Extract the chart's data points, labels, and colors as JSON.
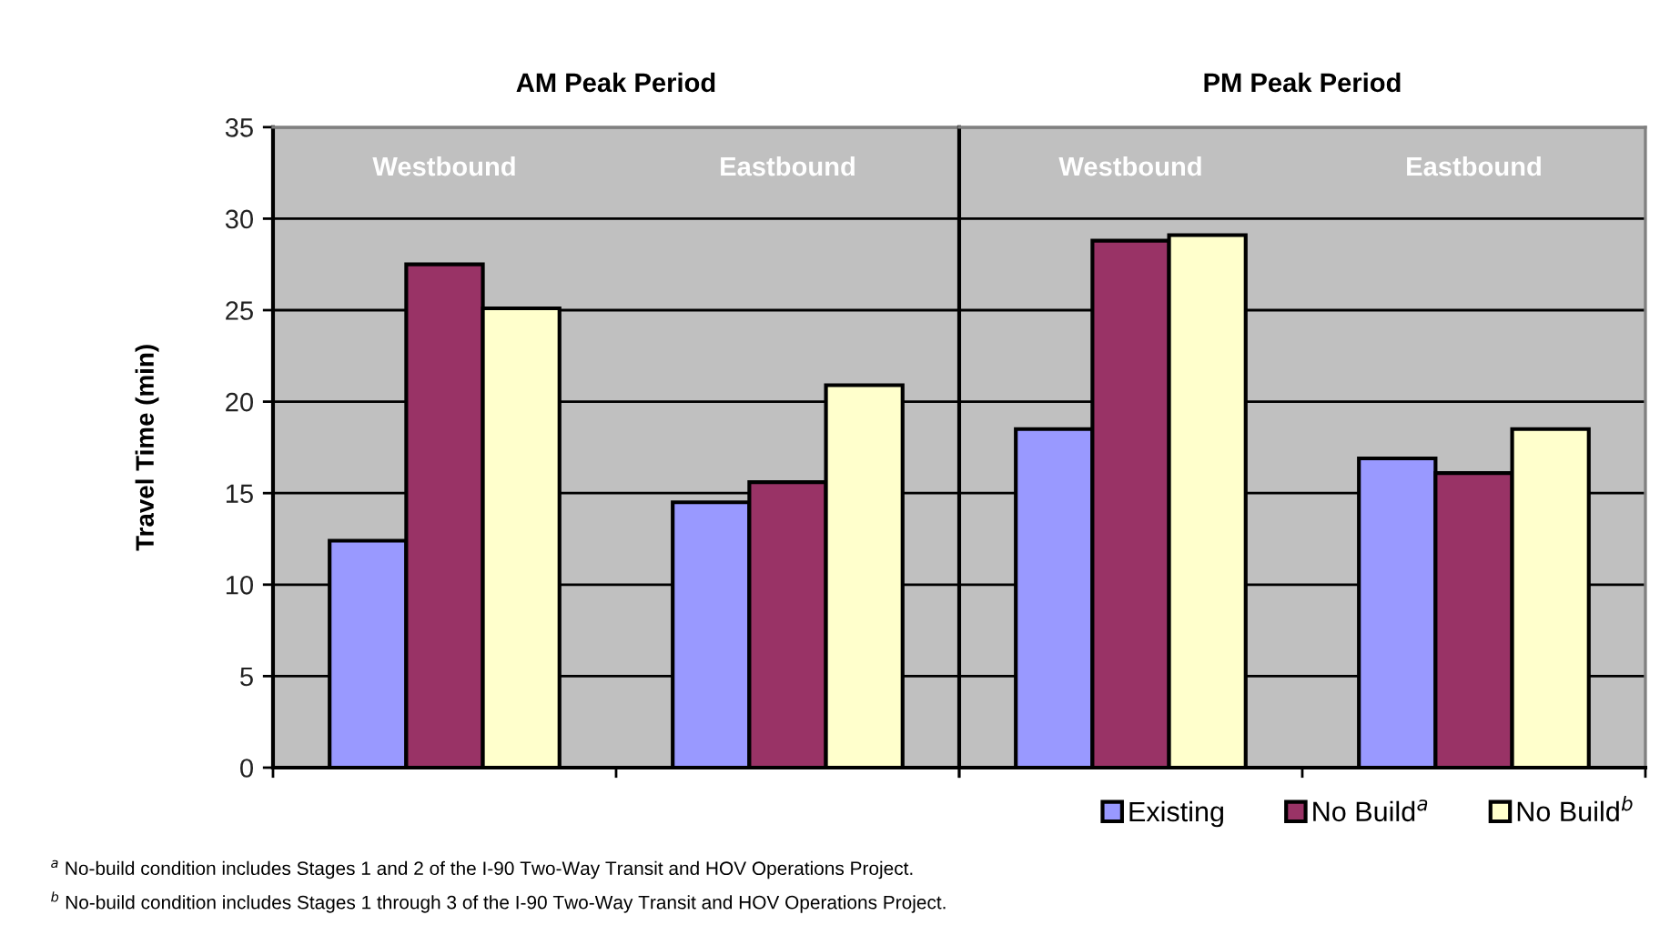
{
  "chart_data": [
    {
      "type": "bar",
      "title": "AM Peak Period",
      "ylabel": "Travel Time (min)",
      "categories": [
        "Westbound",
        "Eastbound"
      ],
      "series": [
        {
          "color": "#9999ff",
          "values": [
            12.4,
            14.5
          ]
        },
        {
          "color": "#993366",
          "values": [
            27.5,
            15.6
          ]
        },
        {
          "color": "#ffffcc",
          "values": [
            25.1,
            20.9
          ]
        }
      ],
      "ylim": [
        0,
        35
      ],
      "yticks": [
        0,
        5,
        10,
        15,
        20,
        25,
        30,
        35
      ],
      "grid": "y",
      "annotations": [
        "$^{a}$ No-build condition includes Stages 1 and 2 of the I-90 Two-Way Transit and HOV Operations Project.",
        "$^{b}$ No-build condition includes Stages 1 through 3 of the I-90 Two-Way Transit and HOV Operations Project."
      ]
    },
    {
      "type": "bar",
      "title": "PM Peak Period",
      "categories": [
        "Westbound",
        "Eastbound"
      ],
      "series": [
        {
          "name": "Existing",
          "color": "#9999ff",
          "values": [
            18.5,
            16.9
          ]
        },
        {
          "name": "No Build$^{a}$",
          "color": "#993366",
          "values": [
            28.8,
            16.1
          ]
        },
        {
          "name": "No Build$^{b}$",
          "color": "#ffffcc",
          "values": [
            29.1,
            18.5
          ]
        }
      ],
      "ylim": [
        0,
        35
      ],
      "yticks": [
        0,
        5,
        10,
        15,
        20,
        25,
        30,
        35
      ],
      "grid": "y",
      "tick_labels": "x",
      "legend": "bottom right"
    }
  ]
}
